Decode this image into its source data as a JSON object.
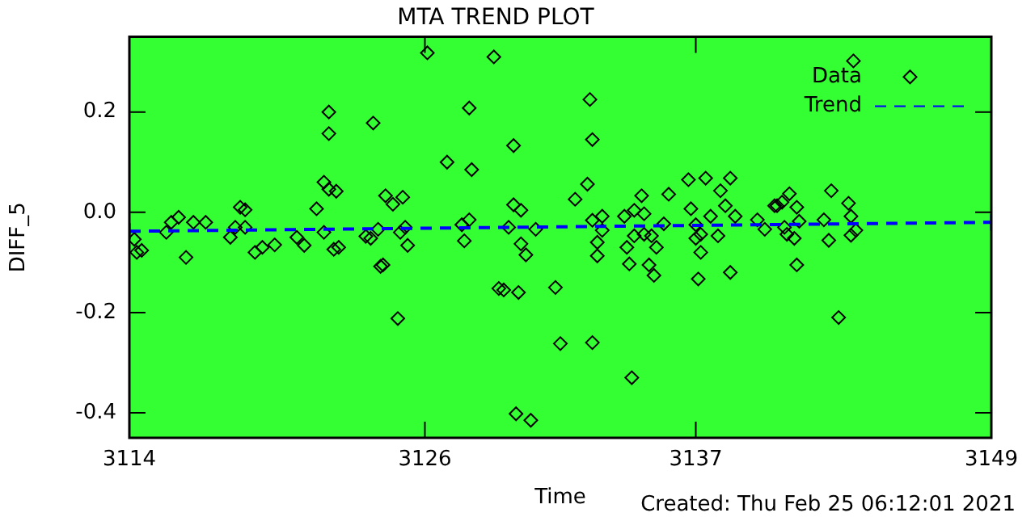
{
  "chart_data": {
    "type": "scatter",
    "title": "MTA TREND PLOT",
    "xlabel": "Time",
    "ylabel": "DIFF_5",
    "annotations": [
      "Created: Thu Feb 25 06:12:01 2021"
    ],
    "xlim": [
      3114,
      3149
    ],
    "xticks": [
      3114,
      3126,
      3137,
      3149
    ],
    "ylim": [
      -0.45,
      0.35
    ],
    "yticks": [
      {
        "value": -0.4,
        "label": "-0.4"
      },
      {
        "value": -0.2,
        "label": "-0.2"
      },
      {
        "value": 0,
        "label": "0.0"
      },
      {
        "value": 0.2,
        "label": "0.2"
      }
    ],
    "grid": false,
    "legend": "top right",
    "marker": "diamond",
    "series": [
      {
        "name": "Data",
        "color": "#000000",
        "x": [
          3114.2,
          3114.3,
          3114.5,
          3115.5,
          3115.7,
          3116.0,
          3116.3,
          3116.6,
          3117.1,
          3118.1,
          3118.3,
          3118.5,
          3118.7,
          3118.7,
          3119.1,
          3119.4,
          3119.9,
          3120.8,
          3121.1,
          3121.6,
          3121.9,
          3122.1,
          3122.4,
          3122.1,
          3122.1,
          3121.9,
          3122.3,
          3122.5,
          3126.1,
          3128.8,
          3127.8,
          3123.9,
          3129.6,
          3126.9,
          3127.9,
          3124.4,
          3124.7,
          3125.1,
          3129.6,
          3129.9,
          3123.6,
          3123.8,
          3124.1,
          3125.0,
          3125.3,
          3125.2,
          3127.5,
          3127.8,
          3127.6,
          3124.2,
          3124.3,
          3124.9,
          3129.0,
          3129.2,
          3129.8,
          3129.4,
          3129.9,
          3130.1,
          3130.5,
          3131.3,
          3131.5,
          3129.7,
          3130.3,
          3132.7,
          3132.8,
          3132.6,
          3132.1,
          3132.8,
          3132.8,
          3133.2,
          3133.2,
          3133.0,
          3133.0,
          3134.1,
          3134.5,
          3134.8,
          3134.9,
          3134.2,
          3134.3,
          3134.5,
          3134.9,
          3135.2,
          3135.4,
          3135.1,
          3135.3,
          3134.4,
          3135.7,
          3135.9,
          3136.7,
          3137.4,
          3138.4,
          3138.0,
          3136.8,
          3137.0,
          3137.2,
          3137.0,
          3137.2,
          3137.1,
          3137.6,
          3137.9,
          3138.2,
          3138.6,
          3138.4,
          3139.5,
          3139.8,
          3140.2,
          3143.4,
          3145.7,
          3140.8,
          3140.5,
          3140.3,
          3141.1,
          3142.5,
          3143.2,
          3141.2,
          3140.6,
          3140.7,
          3141.0,
          3142.2,
          3142.4,
          3143.3,
          3143.3,
          3143.5,
          3141.1,
          3142.8
        ],
        "values": [
          -0.054,
          -0.08,
          -0.076,
          -0.04,
          -0.02,
          -0.01,
          -0.09,
          -0.02,
          -0.02,
          -0.05,
          -0.03,
          0.01,
          0.005,
          -0.03,
          -0.08,
          -0.07,
          -0.065,
          -0.05,
          -0.066,
          0.007,
          0.06,
          0.046,
          0.042,
          0.157,
          0.2,
          -0.04,
          -0.074,
          -0.07,
          0.318,
          0.31,
          0.208,
          0.178,
          0.133,
          0.1,
          0.085,
          0.033,
          0.016,
          0.03,
          0.015,
          0.004,
          -0.048,
          -0.052,
          -0.034,
          -0.04,
          -0.066,
          -0.03,
          -0.025,
          -0.015,
          -0.057,
          -0.108,
          -0.105,
          -0.212,
          -0.152,
          -0.155,
          -0.16,
          -0.03,
          -0.063,
          -0.085,
          -0.034,
          -0.15,
          -0.262,
          -0.402,
          -0.415,
          0.225,
          0.145,
          0.056,
          0.026,
          -0.26,
          -0.016,
          -0.008,
          -0.036,
          -0.06,
          -0.087,
          -0.008,
          0.004,
          0.033,
          -0.003,
          -0.07,
          -0.103,
          -0.047,
          -0.044,
          -0.047,
          -0.07,
          -0.105,
          -0.126,
          -0.33,
          -0.023,
          0.036,
          0.065,
          0.068,
          0.068,
          0.043,
          0.007,
          -0.025,
          -0.044,
          -0.052,
          -0.08,
          -0.133,
          -0.008,
          -0.047,
          0.013,
          -0.008,
          -0.12,
          -0.015,
          -0.034,
          0.013,
          0.302,
          0.27,
          0.037,
          0.02,
          0.013,
          0.01,
          0.043,
          0.018,
          -0.018,
          -0.03,
          -0.044,
          -0.052,
          -0.015,
          -0.056,
          -0.008,
          -0.046,
          -0.036,
          -0.105,
          -0.21
        ]
      },
      {
        "name": "Trend",
        "type": "line",
        "color": "#0000ff",
        "marker": "cross",
        "line_style": "dashed",
        "x": [
          3114,
          3149
        ],
        "values": [
          -0.038,
          -0.02
        ]
      }
    ]
  }
}
